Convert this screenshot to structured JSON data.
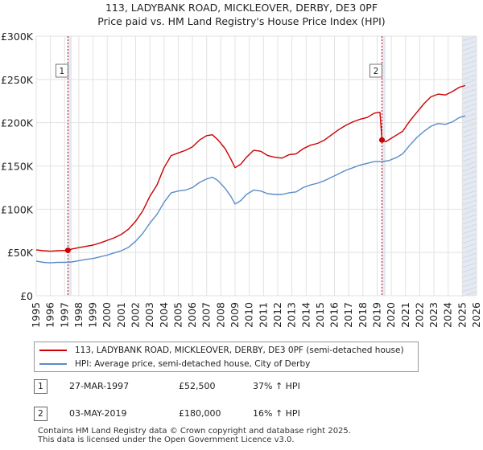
{
  "chart_data": {
    "type": "line",
    "title": "113, LADYBANK ROAD, MICKLEOVER, DERBY, DE3 0PF",
    "subtitle": "Price paid vs. HM Land Registry's House Price Index (HPI)",
    "xlabel": "",
    "ylabel": "",
    "xlim": [
      1995,
      2026
    ],
    "ylim": [
      0,
      300000
    ],
    "x_ticks": [
      "1995",
      "1996",
      "1997",
      "1998",
      "1999",
      "2000",
      "2001",
      "2002",
      "2003",
      "2004",
      "2005",
      "2006",
      "2007",
      "2008",
      "2009",
      "2010",
      "2011",
      "2012",
      "2013",
      "2014",
      "2015",
      "2016",
      "2017",
      "2018",
      "2019",
      "2020",
      "2021",
      "2022",
      "2023",
      "2024",
      "2025",
      "2026"
    ],
    "y_ticks": [
      {
        "value": 0,
        "label": "£0"
      },
      {
        "value": 50000,
        "label": "£50K"
      },
      {
        "value": 100000,
        "label": "£100K"
      },
      {
        "value": 150000,
        "label": "£150K"
      },
      {
        "value": 200000,
        "label": "£200K"
      },
      {
        "value": 250000,
        "label": "£250K"
      },
      {
        "value": 300000,
        "label": "£300K"
      }
    ],
    "grid": true,
    "shaded_regions": [
      {
        "from": 1997.23,
        "to": 1997.5
      },
      {
        "from": 2019.34,
        "to": 2019.6
      },
      {
        "from": 2025.0,
        "to": 2026.0
      }
    ],
    "series": [
      {
        "name": "113, LADYBANK ROAD, MICKLEOVER, DERBY, DE3 0PF (semi-detached house)",
        "color": "#cc0000",
        "points": [
          [
            1995,
            53000
          ],
          [
            1995.5,
            52000
          ],
          [
            1996,
            51500
          ],
          [
            1996.5,
            52000
          ],
          [
            1997,
            52300
          ],
          [
            1997.23,
            52500
          ],
          [
            1997.5,
            54000
          ],
          [
            1998,
            55500
          ],
          [
            1998.5,
            57000
          ],
          [
            1999,
            58500
          ],
          [
            1999.5,
            61000
          ],
          [
            2000,
            64000
          ],
          [
            2000.5,
            67000
          ],
          [
            2001,
            71000
          ],
          [
            2001.5,
            77000
          ],
          [
            2002,
            86000
          ],
          [
            2002.5,
            98000
          ],
          [
            2003,
            115000
          ],
          [
            2003.5,
            128000
          ],
          [
            2004,
            148000
          ],
          [
            2004.5,
            162000
          ],
          [
            2005,
            165000
          ],
          [
            2005.5,
            168000
          ],
          [
            2006,
            172000
          ],
          [
            2006.5,
            180000
          ],
          [
            2007,
            185000
          ],
          [
            2007.4,
            186000
          ],
          [
            2007.8,
            180000
          ],
          [
            2008.3,
            170000
          ],
          [
            2008.7,
            158000
          ],
          [
            2009.0,
            148000
          ],
          [
            2009.4,
            152000
          ],
          [
            2009.8,
            160000
          ],
          [
            2010.3,
            168000
          ],
          [
            2010.8,
            167000
          ],
          [
            2011.3,
            162000
          ],
          [
            2011.8,
            160000
          ],
          [
            2012.3,
            159000
          ],
          [
            2012.8,
            163000
          ],
          [
            2013.3,
            164000
          ],
          [
            2013.8,
            170000
          ],
          [
            2014.3,
            174000
          ],
          [
            2014.8,
            176000
          ],
          [
            2015.3,
            180000
          ],
          [
            2015.8,
            186000
          ],
          [
            2016.3,
            192000
          ],
          [
            2016.8,
            197000
          ],
          [
            2017.3,
            201000
          ],
          [
            2017.8,
            204000
          ],
          [
            2018.3,
            206000
          ],
          [
            2018.8,
            211000
          ],
          [
            2019.2,
            212000
          ],
          [
            2019.34,
            180000
          ],
          [
            2019.6,
            178000
          ],
          [
            2019.9,
            181000
          ],
          [
            2020.4,
            186000
          ],
          [
            2020.8,
            190000
          ],
          [
            2021.3,
            202000
          ],
          [
            2021.8,
            212000
          ],
          [
            2022.3,
            222000
          ],
          [
            2022.8,
            230000
          ],
          [
            2023.3,
            233000
          ],
          [
            2023.8,
            232000
          ],
          [
            2024.3,
            236000
          ],
          [
            2024.8,
            241000
          ],
          [
            2025.2,
            243000
          ]
        ]
      },
      {
        "name": "HPI: Average price, semi-detached house, City of Derby",
        "color": "#5b8cc8",
        "points": [
          [
            1995,
            40000
          ],
          [
            1995.5,
            38500
          ],
          [
            1996,
            38000
          ],
          [
            1996.5,
            38500
          ],
          [
            1997,
            38500
          ],
          [
            1997.5,
            39000
          ],
          [
            1998,
            40500
          ],
          [
            1998.5,
            42000
          ],
          [
            1999,
            43000
          ],
          [
            1999.5,
            45000
          ],
          [
            2000,
            47000
          ],
          [
            2000.5,
            49500
          ],
          [
            2001,
            52000
          ],
          [
            2001.5,
            56000
          ],
          [
            2002,
            63000
          ],
          [
            2002.5,
            72000
          ],
          [
            2003,
            84000
          ],
          [
            2003.5,
            94000
          ],
          [
            2004,
            108000
          ],
          [
            2004.5,
            119000
          ],
          [
            2005,
            121000
          ],
          [
            2005.5,
            122000
          ],
          [
            2006,
            125000
          ],
          [
            2006.5,
            131000
          ],
          [
            2007,
            135000
          ],
          [
            2007.4,
            137000
          ],
          [
            2007.8,
            133000
          ],
          [
            2008.3,
            124000
          ],
          [
            2008.7,
            115000
          ],
          [
            2009.0,
            106000
          ],
          [
            2009.4,
            110000
          ],
          [
            2009.8,
            117000
          ],
          [
            2010.3,
            122000
          ],
          [
            2010.8,
            121000
          ],
          [
            2011.3,
            118000
          ],
          [
            2011.8,
            117000
          ],
          [
            2012.3,
            117000
          ],
          [
            2012.8,
            119000
          ],
          [
            2013.3,
            120000
          ],
          [
            2013.8,
            125000
          ],
          [
            2014.3,
            128000
          ],
          [
            2014.8,
            130000
          ],
          [
            2015.3,
            133000
          ],
          [
            2015.8,
            137000
          ],
          [
            2016.3,
            141000
          ],
          [
            2016.8,
            145000
          ],
          [
            2017.3,
            148000
          ],
          [
            2017.8,
            151000
          ],
          [
            2018.3,
            153000
          ],
          [
            2018.8,
            155000
          ],
          [
            2019.3,
            155000
          ],
          [
            2019.8,
            156000
          ],
          [
            2020.4,
            160000
          ],
          [
            2020.8,
            164000
          ],
          [
            2021.3,
            174000
          ],
          [
            2021.8,
            183000
          ],
          [
            2022.3,
            190000
          ],
          [
            2022.8,
            196000
          ],
          [
            2023.3,
            199000
          ],
          [
            2023.8,
            198000
          ],
          [
            2024.3,
            201000
          ],
          [
            2024.8,
            206000
          ],
          [
            2025.2,
            208000
          ]
        ]
      }
    ],
    "events": [
      {
        "label": "1",
        "x": 1997.23,
        "value": 52500
      },
      {
        "label": "2",
        "x": 2019.34,
        "value": 180000
      }
    ]
  },
  "legend": {
    "items": [
      {
        "label": "113, LADYBANK ROAD, MICKLEOVER, DERBY, DE3 0PF (semi-detached house)",
        "color": "#cc0000"
      },
      {
        "label": "HPI: Average price, semi-detached house, City of Derby",
        "color": "#5b8cc8"
      }
    ]
  },
  "transactions": [
    {
      "num": "1",
      "date": "27-MAR-1997",
      "price": "£52,500",
      "delta": "37% ↑ HPI"
    },
    {
      "num": "2",
      "date": "03-MAY-2019",
      "price": "£180,000",
      "delta": "16% ↑ HPI"
    }
  ],
  "footer": {
    "line1": "Contains HM Land Registry data © Crown copyright and database right 2025.",
    "line2": "This data is licensed under the Open Government Licence v3.0."
  }
}
